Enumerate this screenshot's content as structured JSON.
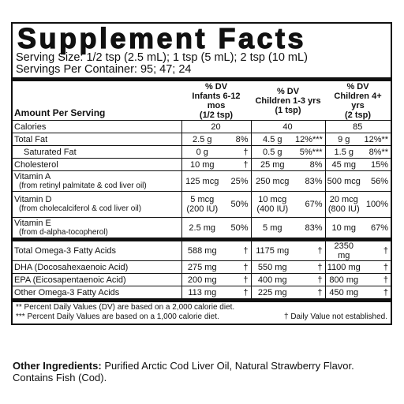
{
  "title": "Supplement Facts",
  "serving_size": "Serving Size: 1/2 tsp (2.5 mL); 1 tsp (5 mL); 2 tsp (10 mL)",
  "servings_per_container": "Servings Per Container: 95; 47; 24",
  "header": {
    "amount_label": "Amount Per Serving",
    "columns": [
      {
        "dv": "% DV",
        "group": "Infants 6-12 mos",
        "serving": "(1/2 tsp)"
      },
      {
        "dv": "% DV",
        "group": "Children 1-3 yrs",
        "serving": "(1 tsp)"
      },
      {
        "dv": "% DV",
        "group": "Children 4+ yrs",
        "serving": "(2 tsp)"
      }
    ]
  },
  "nutrients": [
    {
      "name": "Calories",
      "cells": [
        {
          "amount": [
            "20"
          ]
        },
        {
          "amount": [
            "40"
          ]
        },
        {
          "amount": [
            "85"
          ]
        }
      ]
    },
    {
      "name": "Total Fat",
      "cells": [
        {
          "amount": [
            "2.5 g"
          ],
          "dv": "8%"
        },
        {
          "amount": [
            "4.5 g"
          ],
          "dv": "12%***"
        },
        {
          "amount": [
            "9 g"
          ],
          "dv": "12%**"
        }
      ]
    },
    {
      "name": "Saturated Fat",
      "cells": [
        {
          "amount": [
            "0 g"
          ],
          "dv": "†"
        },
        {
          "amount": [
            "0.5 g"
          ],
          "dv": "5%***"
        },
        {
          "amount": [
            "1.5 g"
          ],
          "dv": "8%**"
        }
      ]
    },
    {
      "name": "Cholesterol",
      "cells": [
        {
          "amount": [
            "10 mg"
          ],
          "dv": "†"
        },
        {
          "amount": [
            "25 mg"
          ],
          "dv": "8%"
        },
        {
          "amount": [
            "45 mg"
          ],
          "dv": "15%"
        }
      ]
    },
    {
      "name": "Vitamin A",
      "sub": "(from retinyl palmitate & cod liver oil)",
      "cells": [
        {
          "amount": [
            "125 mcg"
          ],
          "dv": "25%"
        },
        {
          "amount": [
            "250 mcg"
          ],
          "dv": "83%"
        },
        {
          "amount": [
            "500 mcg"
          ],
          "dv": "56%"
        }
      ]
    },
    {
      "name": "Vitamin D",
      "sub": "(from cholecalciferol & cod liver oil)",
      "cells": [
        {
          "amount": [
            "5 mcg",
            "(200 IU)"
          ],
          "dv": "50%"
        },
        {
          "amount": [
            "10 mcg",
            "(400 IU)"
          ],
          "dv": "67%"
        },
        {
          "amount": [
            "20 mcg",
            "(800 IU)"
          ],
          "dv": "100%"
        }
      ]
    },
    {
      "name": "Vitamin E",
      "sub": "(from d-alpha-tocopherol)",
      "cells": [
        {
          "amount": [
            "2.5 mg"
          ],
          "dv": "50%"
        },
        {
          "amount": [
            "5 mg"
          ],
          "dv": "83%"
        },
        {
          "amount": [
            "10 mg"
          ],
          "dv": "67%"
        }
      ]
    }
  ],
  "fatty_acids": [
    {
      "name": "Total Omega-3 Fatty Acids",
      "cells": [
        {
          "amount": [
            "588 mg"
          ],
          "dv": "†"
        },
        {
          "amount": [
            "1175 mg"
          ],
          "dv": "†"
        },
        {
          "amount": [
            "2350 mg"
          ],
          "dv": "†"
        }
      ]
    },
    {
      "name": "DHA (Docosahexaenoic Acid)",
      "cells": [
        {
          "amount": [
            "275 mg"
          ],
          "dv": "†"
        },
        {
          "amount": [
            "550 mg"
          ],
          "dv": "†"
        },
        {
          "amount": [
            "1100 mg"
          ],
          "dv": "†"
        }
      ]
    },
    {
      "name": "EPA (Eicosapentaenoic Acid)",
      "cells": [
        {
          "amount": [
            "200 mg"
          ],
          "dv": "†"
        },
        {
          "amount": [
            "400 mg"
          ],
          "dv": "†"
        },
        {
          "amount": [
            "800 mg"
          ],
          "dv": "†"
        }
      ]
    },
    {
      "name": "Other Omega-3 Fatty Acids",
      "cells": [
        {
          "amount": [
            "113 mg"
          ],
          "dv": "†"
        },
        {
          "amount": [
            "225 mg"
          ],
          "dv": "†"
        },
        {
          "amount": [
            "450 mg"
          ],
          "dv": "†"
        }
      ]
    }
  ],
  "footnotes": [
    "** Percent Daily Values (DV) are based on a 2,000 calorie diet.",
    "*** Percent Daily Values are based on a 1,000 calorie diet.",
    "† Daily Value not established."
  ],
  "other_ingredients": {
    "label": "Other Ingredients:",
    "text": "Purified Arctic Cod Liver Oil, Natural Strawberry Flavor. Contains Fish (Cod)."
  }
}
